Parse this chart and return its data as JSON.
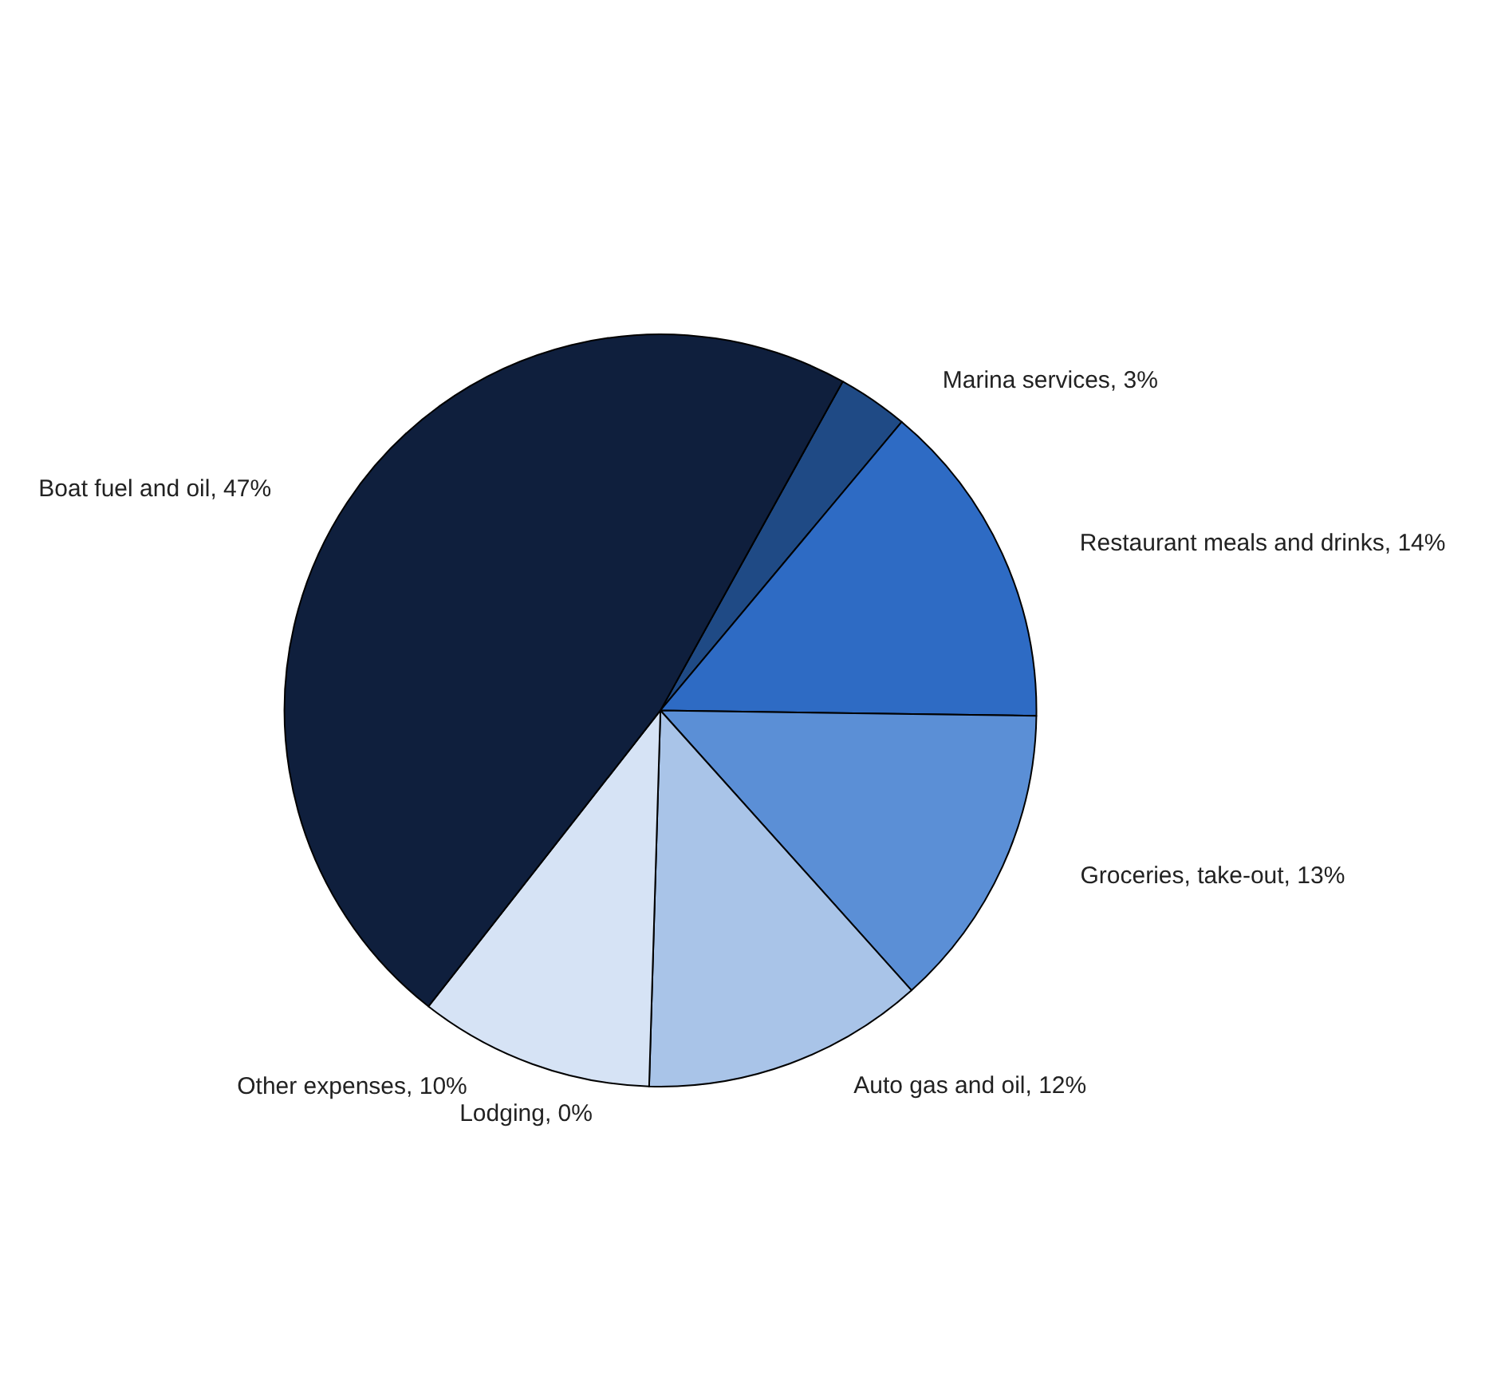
{
  "chart_data": {
    "type": "pie",
    "categories": [
      "Marina services, 3%",
      "Restaurant meals and drinks, 14%",
      "Groceries, take-out, 13%",
      "Auto gas and oil, 12%",
      "Lodging, 0%",
      "Other expenses, 10%",
      "Boat fuel and oil, 47%"
    ],
    "values": [
      3,
      14,
      13,
      12,
      0,
      10,
      47
    ],
    "colors": [
      "#1f4a85",
      "#2e6bc4",
      "#5b8fd6",
      "#a9c4e8",
      "#c9d9f0",
      "#d6e3f5",
      "#0f1f3d"
    ],
    "legend": false
  }
}
